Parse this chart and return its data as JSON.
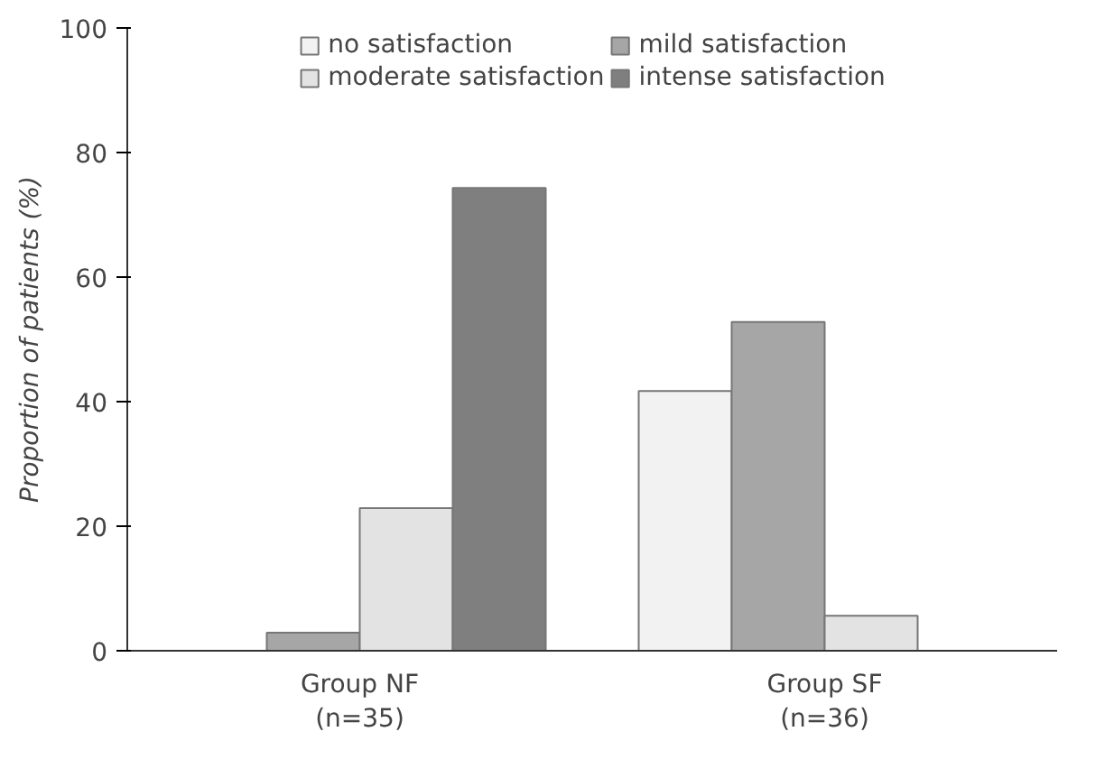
{
  "chart_data": {
    "type": "bar",
    "ylabel": "Proportion of patients (%)",
    "categories": [
      "Group NF\n(n=35)",
      "Group SF\n(n=36)"
    ],
    "series": [
      {
        "name": "no satisfaction",
        "color": "#f2f2f2",
        "values": [
          0,
          41.7
        ]
      },
      {
        "name": "mild satisfaction",
        "color": "#a6a6a6",
        "values": [
          2.9,
          52.8
        ]
      },
      {
        "name": "moderate satisfaction",
        "color": "#e3e3e3",
        "values": [
          22.9,
          5.6
        ]
      },
      {
        "name": "intense satisfaction",
        "color": "#7f7f7f",
        "values": [
          74.3,
          0
        ]
      }
    ],
    "ylim": [
      0,
      100
    ],
    "yticks": [
      0,
      20,
      40,
      60,
      80,
      100
    ],
    "grid": false,
    "legend": "top"
  }
}
